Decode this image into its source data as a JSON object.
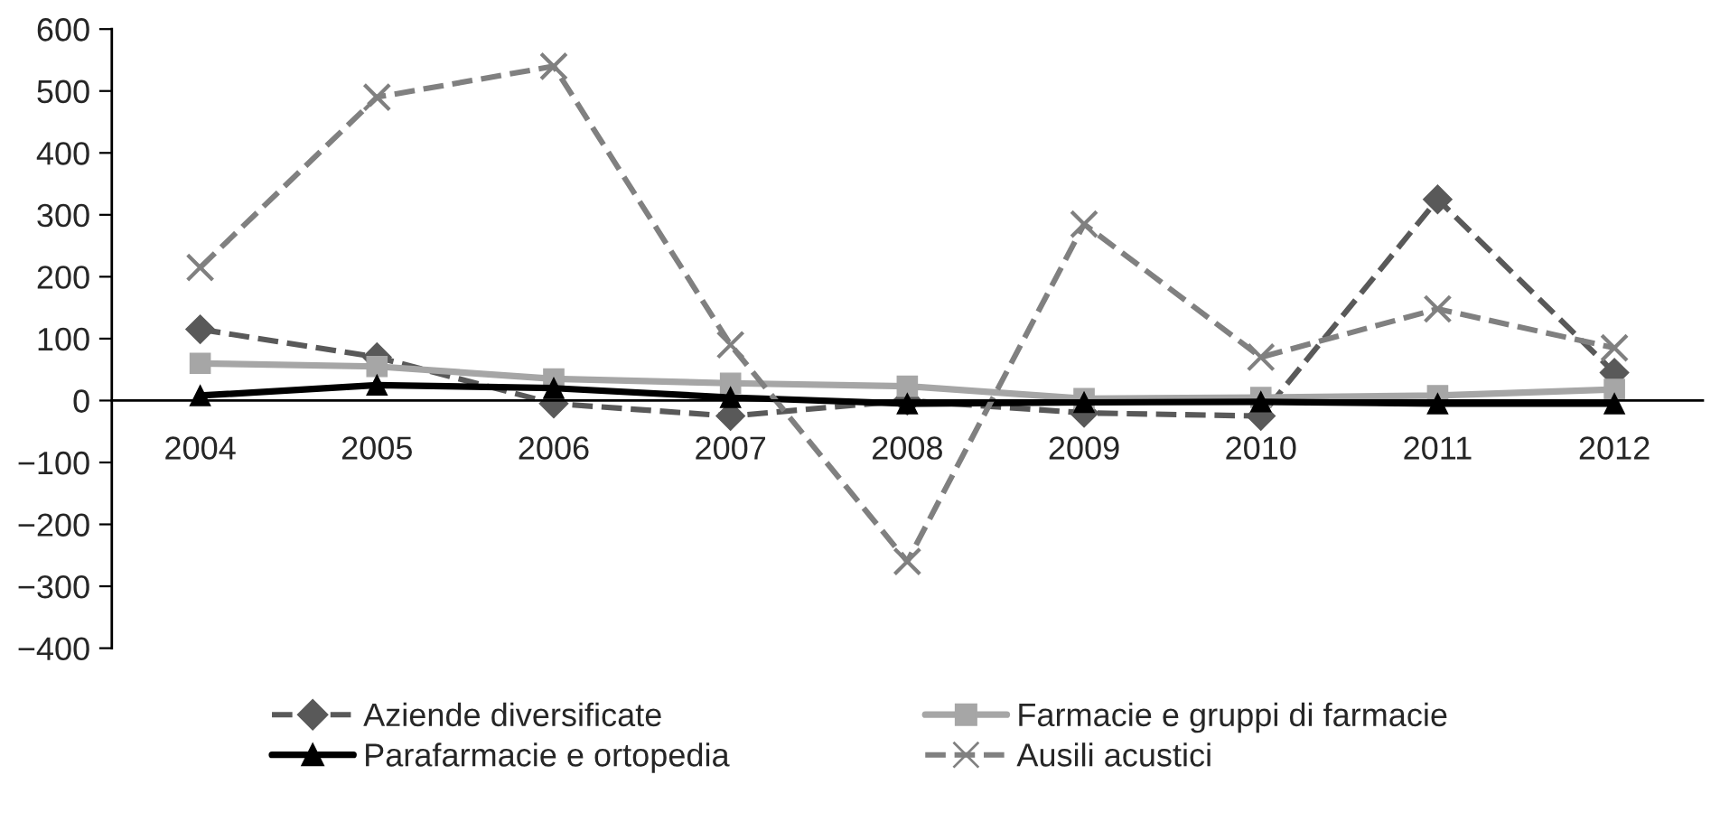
{
  "chart_data": {
    "type": "line",
    "categories": [
      "2004",
      "2005",
      "2006",
      "2007",
      "2008",
      "2009",
      "2010",
      "2011",
      "2012"
    ],
    "series": [
      {
        "name": "Aziende diversificate",
        "color": "#595959",
        "marker": "diamond",
        "line_style": "dashed",
        "values": [
          115,
          70,
          -5,
          -25,
          0,
          -20,
          -25,
          325,
          45
        ]
      },
      {
        "name": "Farmacie e gruppi di farmacie",
        "color": "#a6a6a6",
        "marker": "square",
        "line_style": "solid",
        "values": [
          60,
          55,
          35,
          28,
          23,
          3,
          5,
          8,
          18
        ]
      },
      {
        "name": "Parafarmacie e ortopedia",
        "color": "#000000",
        "marker": "triangle",
        "line_style": "solid",
        "values": [
          8,
          25,
          20,
          5,
          -5,
          -3,
          -2,
          -5,
          -5
        ]
      },
      {
        "name": "Ausili acustici",
        "color": "#808080",
        "marker": "cross",
        "line_style": "dashed",
        "values": [
          215,
          490,
          540,
          90,
          -260,
          285,
          70,
          148,
          85
        ]
      }
    ],
    "ylim": [
      -400,
      600
    ],
    "yticks": [
      {
        "value": -400,
        "label": "−400"
      },
      {
        "value": -300,
        "label": "−300"
      },
      {
        "value": -200,
        "label": "−200"
      },
      {
        "value": -100,
        "label": "−100"
      },
      0,
      100,
      200,
      300,
      400,
      500,
      600
    ],
    "grid": false,
    "legend": "bottom"
  }
}
